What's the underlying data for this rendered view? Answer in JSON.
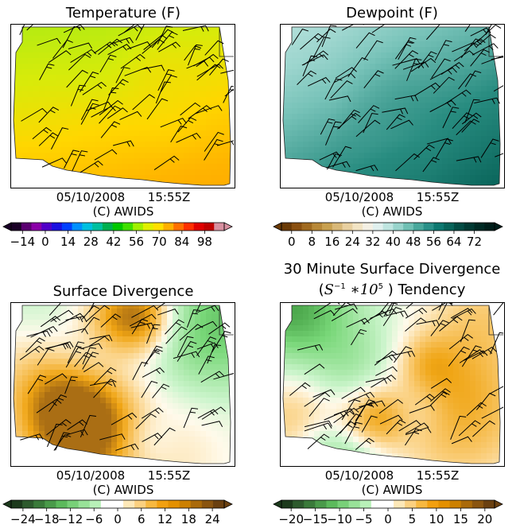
{
  "panels": [
    {
      "id": "temperature",
      "title": "Temperature (F)",
      "date": "05/10/2008",
      "time": "15:55Z",
      "copyright": "(C) AWIDS",
      "field": "temperature",
      "colorbar": {
        "ticks": [
          "−14",
          "0",
          "14",
          "28",
          "42",
          "56",
          "70",
          "84",
          "98"
        ],
        "tick_values": [
          -14,
          0,
          14,
          28,
          42,
          56,
          70,
          84,
          98
        ],
        "range": [
          -21,
          110
        ],
        "colors": [
          "#1a0026",
          "#5a0070",
          "#8a00a8",
          "#5000c8",
          "#1a10e0",
          "#0040ff",
          "#0090ff",
          "#00c0e0",
          "#00c0a0",
          "#00b050",
          "#00c800",
          "#40e000",
          "#a0f000",
          "#e0f000",
          "#ffe000",
          "#ffb000",
          "#ff7000",
          "#ff3000",
          "#e00000",
          "#c00000",
          "#d890a0"
        ]
      }
    },
    {
      "id": "dewpoint",
      "title": "Dewpoint (F)",
      "date": "05/10/2008",
      "time": "15:55Z",
      "copyright": "(C) AWIDS",
      "field": "dewpoint",
      "colorbar": {
        "ticks": [
          "0",
          "8",
          "16",
          "24",
          "32",
          "40",
          "48",
          "56",
          "64",
          "72"
        ],
        "tick_values": [
          0,
          8,
          16,
          24,
          32,
          40,
          48,
          56,
          64,
          72
        ],
        "range": [
          -4,
          80
        ],
        "colors": [
          "#6a3a05",
          "#8a5010",
          "#a06a20",
          "#b88838",
          "#c8a050",
          "#d8b878",
          "#e8d0a0",
          "#f2e4c4",
          "#f4f0e4",
          "#e0f0ee",
          "#bfe5e0",
          "#98d4cc",
          "#70c0b4",
          "#4aa89c",
          "#2a9088",
          "#0e7870",
          "#08645a",
          "#034c44",
          "#013a33",
          "#002a24",
          "#001e1a"
        ]
      }
    },
    {
      "id": "divergence",
      "title": "Surface Divergence",
      "date": "05/10/2008",
      "time": "15:55Z",
      "copyright": "(C) AWIDS",
      "field": "divergence",
      "colorbar": {
        "ticks": [
          "−24",
          "−18",
          "−12",
          "−6",
          "0",
          "6",
          "12",
          "18",
          "24"
        ],
        "tick_values": [
          -24,
          -18,
          -12,
          -6,
          0,
          6,
          12,
          18,
          24
        ],
        "range": [
          -27,
          27
        ],
        "colors": [
          "#1c3a1c",
          "#2d5a2d",
          "#3a7a3a",
          "#4a9a4a",
          "#5cba5c",
          "#78d078",
          "#98e298",
          "#b8f0b8",
          "#ffffff",
          "#ffffff",
          "#fde8b8",
          "#fbd080",
          "#f7b840",
          "#f2a010",
          "#e49000",
          "#cc8000",
          "#aa6a0a",
          "#8a5510",
          "#6a4010"
        ]
      }
    },
    {
      "id": "divergence-tendency",
      "title_line1": "30 Minute Surface Divergence",
      "title_line2_after": " ) Tendency",
      "title_math": {
        "S": "S",
        "exp1": "−1",
        "mid": " ∗10",
        "exp2": "5"
      },
      "date": "05/10/2008",
      "time": "15:55Z",
      "copyright": "(C) AWIDS",
      "field": "tendency",
      "colorbar": {
        "ticks": [
          "−20",
          "−15",
          "−10",
          "−5",
          "0",
          "5",
          "10",
          "15",
          "20"
        ],
        "tick_values": [
          -20,
          -15,
          -10,
          -5,
          0,
          5,
          10,
          15,
          20
        ],
        "range": [
          -22,
          22
        ],
        "colors": [
          "#1c3a1c",
          "#2d5a2d",
          "#3a7a3a",
          "#4a9a4a",
          "#5cba5c",
          "#78d078",
          "#98e298",
          "#b8f0b8",
          "#ffffff",
          "#ffffff",
          "#fde8b8",
          "#fbd080",
          "#f7b840",
          "#f2a010",
          "#e49000",
          "#cc8000",
          "#aa6a0a",
          "#8a5510",
          "#6a4010"
        ]
      }
    }
  ]
}
